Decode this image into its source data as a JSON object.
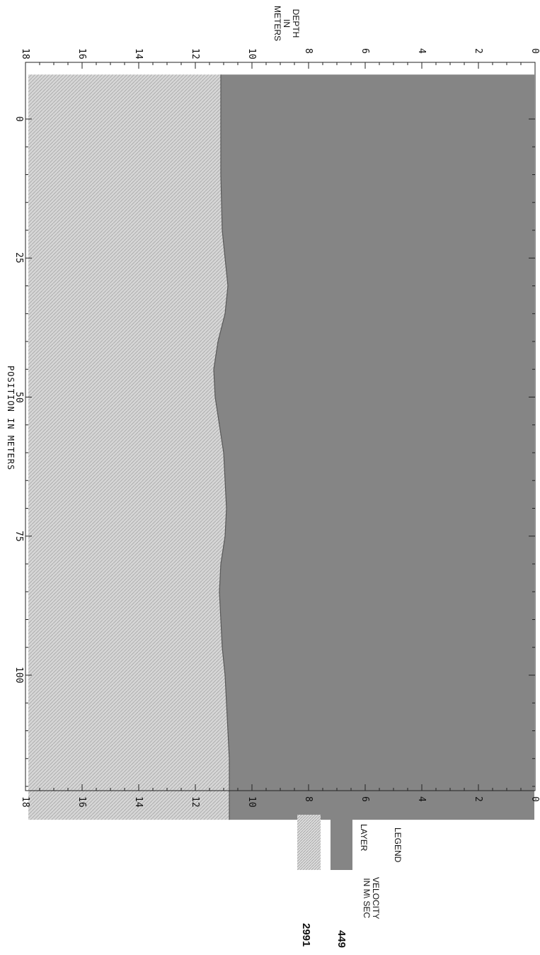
{
  "chart_data": {
    "type": "area",
    "title": "",
    "xlabel": "POSITION IN METERS",
    "ylabel": "DEPTH IN METERS",
    "ylabel_lines": [
      "DEPTH",
      "IN",
      "METERS"
    ],
    "xlim": [
      -10,
      130
    ],
    "ylim": [
      0,
      18
    ],
    "x_ticks": [
      0,
      25,
      50,
      75,
      100
    ],
    "x_tick_labels": [
      "0",
      "25",
      "50",
      "75",
      "100"
    ],
    "y_ticks": [
      0,
      2,
      4,
      6,
      8,
      10,
      12,
      14,
      16,
      18
    ],
    "y_tick_labels": [
      "0",
      "2",
      "4",
      "6",
      "8",
      "10",
      "12",
      "14",
      "16",
      "18"
    ],
    "interface": {
      "x": [
        -8,
        0,
        10,
        20,
        25,
        30,
        35,
        40,
        45,
        50,
        55,
        60,
        65,
        70,
        75,
        80,
        85,
        90,
        95,
        100,
        105,
        110,
        115,
        120,
        126
      ],
      "depth": [
        11.1,
        11.1,
        11.1,
        11.05,
        10.95,
        10.85,
        10.95,
        11.2,
        11.35,
        11.3,
        11.15,
        11.0,
        10.95,
        10.9,
        10.95,
        11.1,
        11.15,
        11.1,
        11.05,
        10.95,
        10.9,
        10.85,
        10.8,
        10.8,
        10.8
      ]
    },
    "model_x_range": [
      -8,
      126
    ],
    "model_depth_max": 17.9,
    "layers": [
      {
        "velocity": "449",
        "color": "#858585"
      },
      {
        "velocity": "2991",
        "color": "#d2d2d2"
      }
    ],
    "legend": {
      "title": "LEGEND",
      "layer_header": "LAYER",
      "velocity_header_lines": [
        "VELOCITY",
        "IN M\\ SEC"
      ],
      "placement": "bottom-right"
    }
  }
}
